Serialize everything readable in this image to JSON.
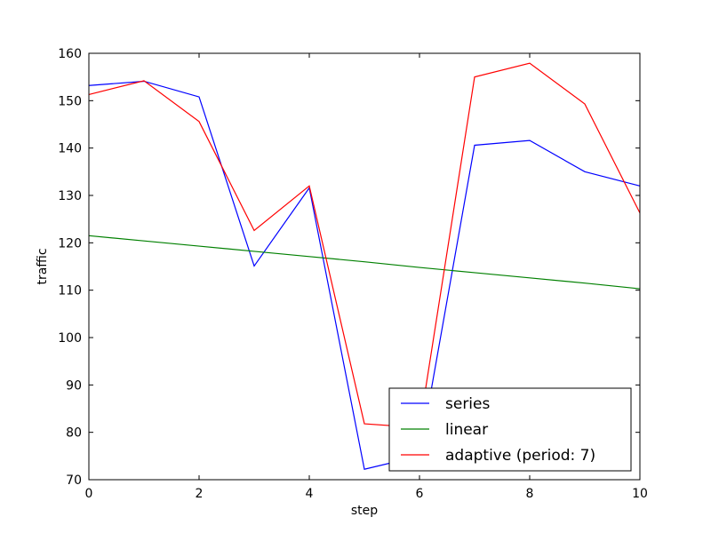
{
  "chart_data": {
    "type": "line",
    "title": "",
    "xlabel": "step",
    "ylabel": "traffic",
    "xlim": [
      0,
      10
    ],
    "ylim": [
      70,
      160
    ],
    "xticks": [
      0,
      2,
      4,
      6,
      8,
      10
    ],
    "yticks": [
      70,
      80,
      90,
      100,
      110,
      120,
      130,
      140,
      150,
      160
    ],
    "grid": false,
    "legend_position": "lower-right",
    "x": [
      0,
      1,
      2,
      3,
      4,
      5,
      6,
      7,
      8,
      9,
      10
    ],
    "series": [
      {
        "name": "series",
        "color": "#0000ff",
        "values": [
          153.2,
          154.1,
          150.8,
          115.1,
          131.6,
          72.2,
          75.0,
          140.6,
          141.6,
          135.0,
          132.0
        ]
      },
      {
        "name": "linear",
        "color": "#008000",
        "values": [
          121.5,
          120.4,
          119.3,
          118.2,
          117.1,
          116.0,
          114.8,
          113.7,
          112.6,
          111.5,
          110.3
        ]
      },
      {
        "name": "adaptive (period: 7)",
        "color": "#ff0000",
        "values": [
          151.3,
          154.2,
          145.6,
          122.6,
          132.0,
          81.8,
          81.0,
          155.0,
          157.9,
          149.3,
          126.3
        ]
      }
    ]
  }
}
